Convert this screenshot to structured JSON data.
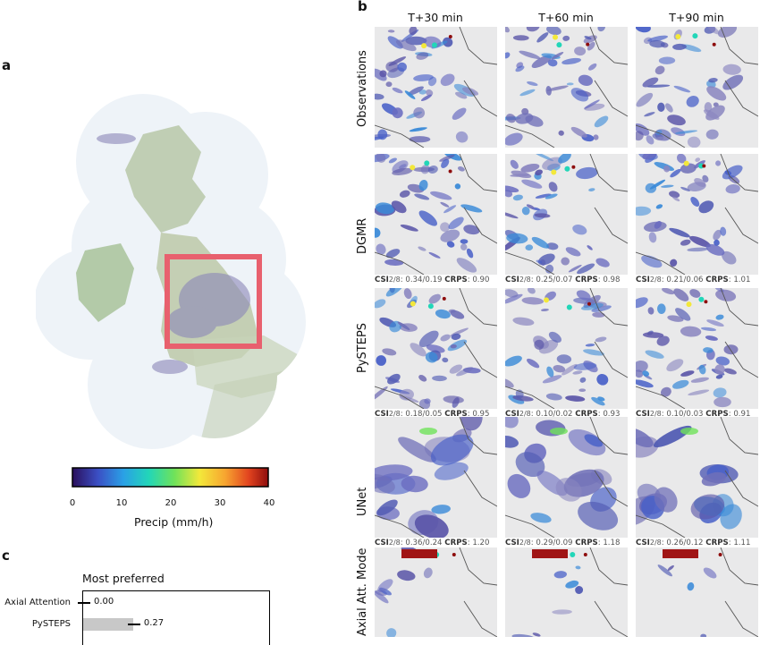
{
  "panel_a": {
    "letter": "a"
  },
  "panel_b": {
    "letter": "b"
  },
  "panel_c": {
    "letter": "c"
  },
  "columns": [
    "T+30 min",
    "T+60 min",
    "T+90 min"
  ],
  "rows": [
    {
      "name": "Observations",
      "metrics": null
    },
    {
      "name": "DGMR",
      "metrics": [
        {
          "csi_label": "CSI",
          "csi_sub": "2/8",
          "csi_val": ": 0.34/0.19",
          "crps_label": "CRPS",
          "crps_val": ": 0.90"
        },
        {
          "csi_label": "CSI",
          "csi_sub": "2/8",
          "csi_val": ": 0.25/0.07",
          "crps_label": "CRPS",
          "crps_val": ": 0.98"
        },
        {
          "csi_label": "CSI",
          "csi_sub": "2/8",
          "csi_val": ": 0.21/0.06",
          "crps_label": "CRPS",
          "crps_val": ": 1.01"
        }
      ]
    },
    {
      "name": "PySTEPS",
      "metrics": [
        {
          "csi_label": "CSI",
          "csi_sub": "2/8",
          "csi_val": ": 0.18/0.05",
          "crps_label": "CRPS",
          "crps_val": ": 0.95"
        },
        {
          "csi_label": "CSI",
          "csi_sub": "2/8",
          "csi_val": ": 0.10/0.02",
          "crps_label": "CRPS",
          "crps_val": ": 0.93"
        },
        {
          "csi_label": "CSI",
          "csi_sub": "2/8",
          "csi_val": ": 0.10/0.03",
          "crps_label": "CRPS",
          "crps_val": ": 0.91"
        }
      ]
    },
    {
      "name": "UNet",
      "metrics": [
        {
          "csi_label": "CSI",
          "csi_sub": "2/8",
          "csi_val": ": 0.36/0.24",
          "crps_label": "CRPS",
          "crps_val": ": 1.20"
        },
        {
          "csi_label": "CSI",
          "csi_sub": "2/8",
          "csi_val": ": 0.29/0.09",
          "crps_label": "CRPS",
          "crps_val": ": 1.18"
        },
        {
          "csi_label": "CSI",
          "csi_sub": "2/8",
          "csi_val": ": 0.26/0.12",
          "crps_label": "CRPS",
          "crps_val": ": 1.11"
        }
      ]
    },
    {
      "name": "Axial Att. Mode",
      "metrics": null
    }
  ],
  "colorbar": {
    "label": "Precip (mm/h)",
    "ticks": [
      "0",
      "10",
      "20",
      "30",
      "40"
    ],
    "colors": [
      "#2a0f5c",
      "#3b4fc4",
      "#2aa0e6",
      "#22d6b8",
      "#6fe25a",
      "#f3e83a",
      "#f7a530",
      "#e2441f",
      "#8e0d0d"
    ]
  },
  "preference": {
    "title": "Most preferred",
    "bars": [
      {
        "label": "Axial Attention",
        "value": 0.0,
        "value_text": "0.00"
      },
      {
        "label": "PySTEPS",
        "value": 0.27,
        "value_text": "0.27"
      }
    ],
    "xlim": [
      0,
      1
    ]
  },
  "colors": {
    "highlight_box": "#e8606e",
    "map_halo": "#eef3f8",
    "tile_bg": "#e9e9ea",
    "bar": "#c8c8c8"
  }
}
